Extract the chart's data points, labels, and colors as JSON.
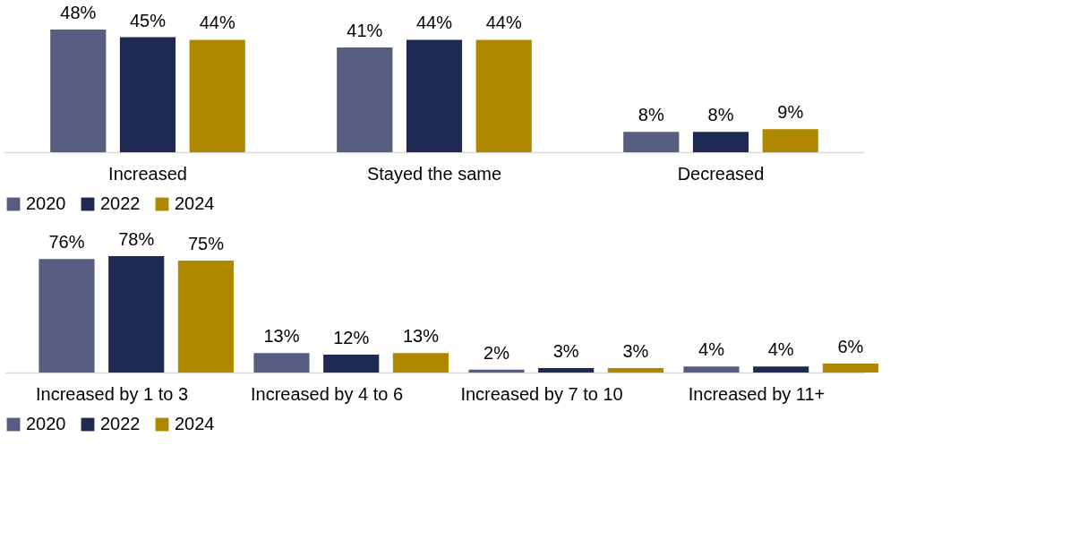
{
  "chart_data": [
    {
      "type": "bar",
      "categories": [
        "Increased",
        "Stayed the same",
        "Decreased"
      ],
      "legend": "bottom",
      "series": [
        {
          "name": "2020",
          "color": "#565d80",
          "values": [
            48,
            41,
            8
          ],
          "value_labels": [
            "48%",
            "41%",
            "8%"
          ]
        },
        {
          "name": "2022",
          "color": "#1f2a52",
          "values": [
            45,
            44,
            8
          ],
          "value_labels": [
            "45%",
            "44%",
            "8%"
          ]
        },
        {
          "name": "2024",
          "color": "#b08800",
          "values": [
            44,
            44,
            9
          ],
          "value_labels": [
            "44%",
            "44%",
            "9%"
          ]
        }
      ]
    },
    {
      "type": "bar",
      "categories": [
        "Increased by 1 to 3",
        "Increased by 4 to 6",
        "Increased by 7 to 10",
        "Increased by 11+"
      ],
      "legend": "bottom",
      "series": [
        {
          "name": "2020",
          "color": "#565d80",
          "values": [
            76,
            13,
            2,
            4
          ],
          "value_labels": [
            "76%",
            "13%",
            "2%",
            "4%"
          ]
        },
        {
          "name": "2022",
          "color": "#1f2a52",
          "values": [
            78,
            12,
            3,
            4
          ],
          "value_labels": [
            "78%",
            "12%",
            "3%",
            "4%"
          ]
        },
        {
          "name": "2024",
          "color": "#b08800",
          "values": [
            75,
            13,
            3,
            6
          ],
          "value_labels": [
            "75%",
            "13%",
            "3%",
            "6%"
          ]
        }
      ]
    }
  ]
}
